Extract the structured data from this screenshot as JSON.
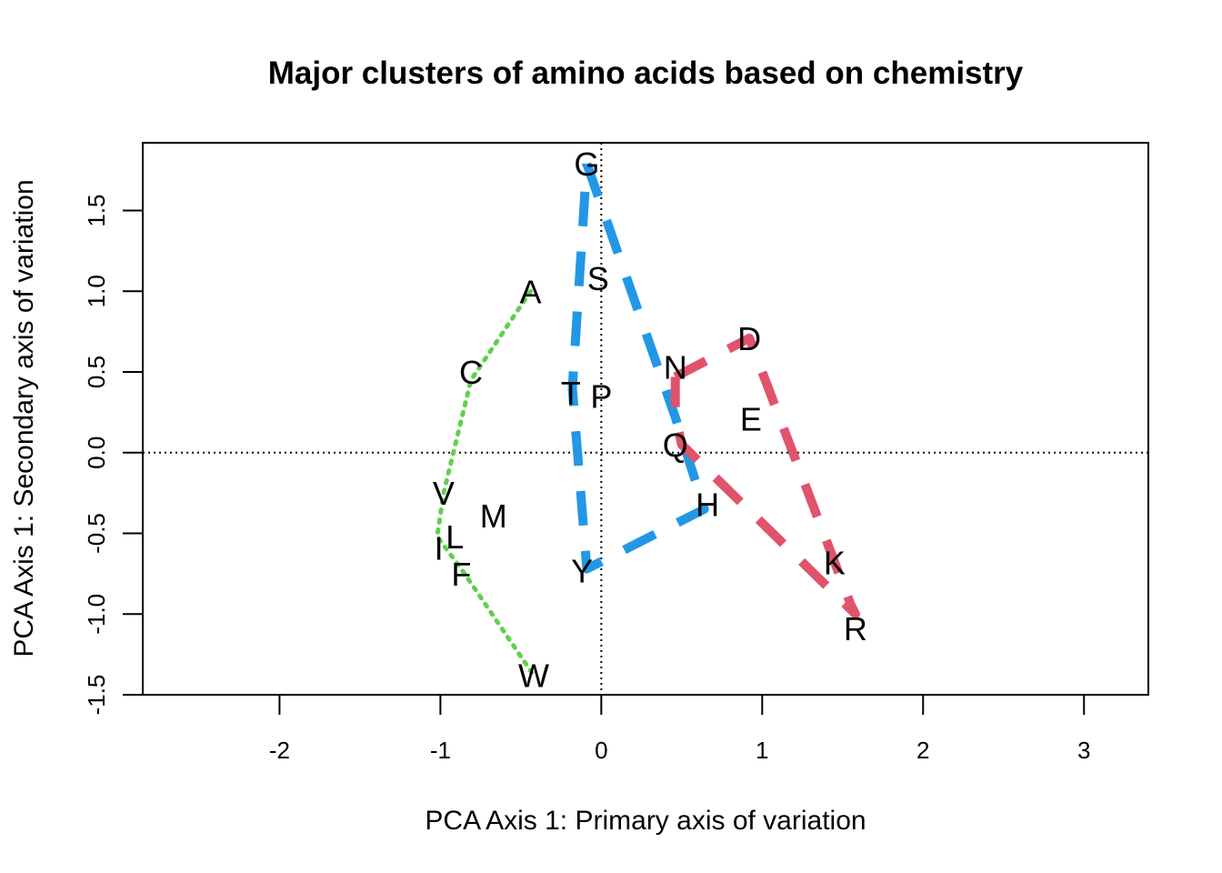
{
  "chart_data": {
    "type": "scatter",
    "title": "Major clusters of amino acids based on chemistry",
    "xlabel": "PCA Axis 1: Primary axis of variation",
    "ylabel": "PCA Axis 1: Secondary axis of variation",
    "xlim": [
      -2.85,
      3.4
    ],
    "ylim": [
      -1.5,
      1.92
    ],
    "x_ticks": [
      -2,
      -1,
      0,
      1,
      2,
      3
    ],
    "y_ticks": [
      -1.5,
      -1.0,
      -0.5,
      0.0,
      0.5,
      1.0,
      1.5
    ],
    "x_tick_labels": [
      "-2",
      "-1",
      "0",
      "1",
      "2",
      "3"
    ],
    "y_tick_labels": [
      "-1.5",
      "-1.0",
      "-0.5",
      "0.0",
      "0.5",
      "1.0",
      "1.5"
    ],
    "reference_lines": {
      "x": 0,
      "y": 0,
      "style": "dotted"
    },
    "points": [
      {
        "label": "G",
        "x": -0.09,
        "y": 1.79
      },
      {
        "label": "S",
        "x": -0.02,
        "y": 1.08
      },
      {
        "label": "A",
        "x": -0.44,
        "y": 1.0
      },
      {
        "label": "D",
        "x": 0.92,
        "y": 0.71
      },
      {
        "label": "N",
        "x": 0.46,
        "y": 0.53
      },
      {
        "label": "C",
        "x": -0.81,
        "y": 0.5
      },
      {
        "label": "T",
        "x": -0.19,
        "y": 0.37
      },
      {
        "label": "P",
        "x": 0.0,
        "y": 0.35
      },
      {
        "label": "E",
        "x": 0.93,
        "y": 0.21
      },
      {
        "label": "Q",
        "x": 0.46,
        "y": 0.05
      },
      {
        "label": "V",
        "x": -0.98,
        "y": -0.25
      },
      {
        "label": "M",
        "x": -0.67,
        "y": -0.39
      },
      {
        "label": "H",
        "x": 0.66,
        "y": -0.32
      },
      {
        "label": "L",
        "x": -0.91,
        "y": -0.52
      },
      {
        "label": "I",
        "x": -1.01,
        "y": -0.59
      },
      {
        "label": "F",
        "x": -0.87,
        "y": -0.75
      },
      {
        "label": "Y",
        "x": -0.12,
        "y": -0.73
      },
      {
        "label": "K",
        "x": 1.45,
        "y": -0.68
      },
      {
        "label": "R",
        "x": 1.58,
        "y": -1.09
      },
      {
        "label": "W",
        "x": -0.42,
        "y": -1.38
      }
    ],
    "hulls": [
      {
        "color": "#61d04f",
        "style": "dotted",
        "points": [
          [
            -0.44,
            1.0
          ],
          [
            -0.81,
            0.45
          ],
          [
            -0.98,
            -0.25
          ],
          [
            -1.02,
            -0.52
          ],
          [
            -0.87,
            -0.72
          ],
          [
            -0.42,
            -1.38
          ]
        ]
      },
      {
        "color": "#2297e6",
        "style": "dashed",
        "points": [
          [
            -0.09,
            1.79
          ],
          [
            0.46,
            0.22
          ],
          [
            0.64,
            -0.35
          ],
          [
            -0.09,
            -0.72
          ],
          [
            -0.18,
            0.4
          ],
          [
            -0.09,
            1.79
          ]
        ]
      },
      {
        "color": "#df536b",
        "style": "dashed",
        "points": [
          [
            0.46,
            0.47
          ],
          [
            0.92,
            0.71
          ],
          [
            1.55,
            -0.94
          ],
          [
            1.58,
            -1.0
          ],
          [
            0.5,
            0.05
          ],
          [
            0.46,
            0.23
          ],
          [
            0.46,
            0.47
          ]
        ]
      }
    ]
  }
}
